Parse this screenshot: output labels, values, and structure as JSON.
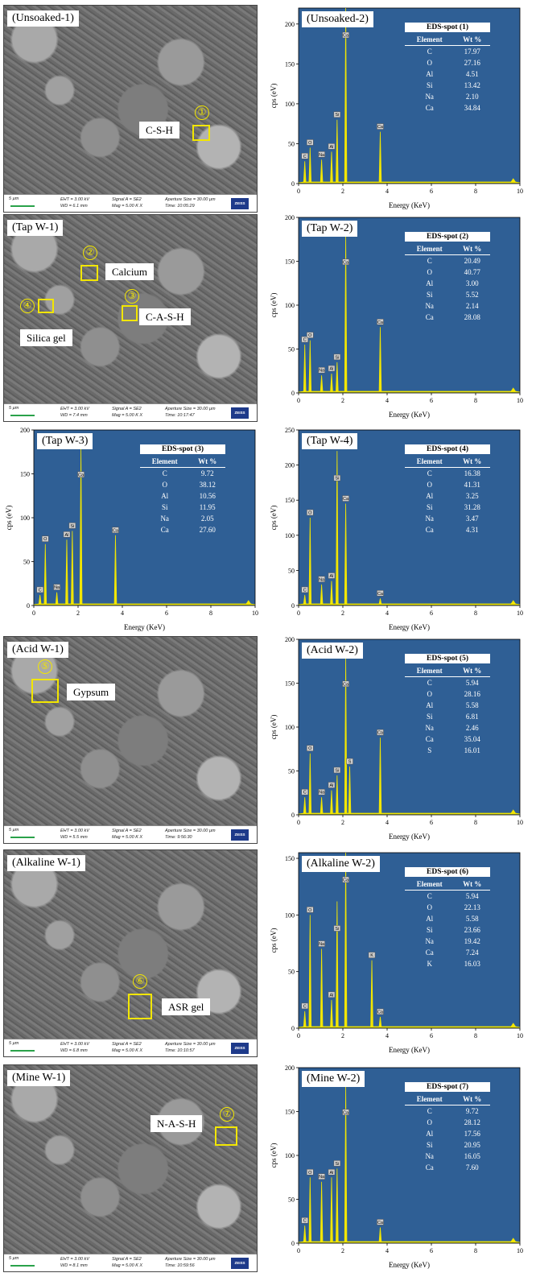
{
  "figure": {
    "sem_info": {
      "scale": "5 µm",
      "signal": "Signal A = SE2",
      "aperture": "Aperture Size = 30.00 µm",
      "eht": "EHT = 3.00 kV",
      "mag": "Mag = 5.00 K X",
      "zeiss": "ZEISS"
    },
    "axis": {
      "xlabel": "Energy (KeV)",
      "ylabel": "cps (eV)",
      "xticks": [
        "0",
        "2",
        "4",
        "6",
        "8",
        "10"
      ]
    },
    "table_cols": {
      "element": "Element",
      "wt": "Wt %"
    },
    "rows": [
      {
        "left": {
          "kind": "sem",
          "tag": "(Unsoaked-1)",
          "wd": "WD = 6.1 mm",
          "time": "Time: 10:05:29",
          "annotations": [
            {
              "text": "C-S-H"
            }
          ],
          "markers": [
            {
              "num": "①"
            }
          ]
        },
        "right": {
          "kind": "eds",
          "tag": "(Unsoaked-2)",
          "table_title": "EDS-spot (1)",
          "elements": [
            [
              "C",
              "17.97"
            ],
            [
              "O",
              "27.16"
            ],
            [
              "Al",
              "4.51"
            ],
            [
              "Si",
              "13.42"
            ],
            [
              "Na",
              "2.10"
            ],
            [
              "Ca",
              "34.84"
            ]
          ],
          "yticks": [
            "0",
            "50",
            "100",
            "150",
            "200"
          ],
          "ymax": 220,
          "peak_labels": [
            "C",
            "O",
            "Na",
            "Al",
            "Si",
            "Ca"
          ]
        }
      },
      {
        "left": {
          "kind": "sem",
          "tag": "(Tap W-1)",
          "wd": "WD = 7.4 mm",
          "time": "Time: 10:17:47",
          "annotations": [
            {
              "text": "Calcium"
            },
            {
              "text": "C-A-S-H"
            },
            {
              "text": "Silica gel"
            }
          ],
          "markers": [
            {
              "num": "②"
            },
            {
              "num": "③"
            },
            {
              "num": "④"
            }
          ]
        },
        "right": {
          "kind": "eds",
          "tag": "(Tap W-2)",
          "table_title": "EDS-spot (2)",
          "elements": [
            [
              "C",
              "20.49"
            ],
            [
              "O",
              "40.77"
            ],
            [
              "Al",
              "3.00"
            ],
            [
              "Si",
              "5.52"
            ],
            [
              "Na",
              "2.14"
            ],
            [
              "Ca",
              "28.08"
            ]
          ],
          "yticks": [
            "0",
            "50",
            "100",
            "150",
            "200"
          ],
          "ymax": 200,
          "peak_labels": [
            "C",
            "O",
            "Na",
            "Al",
            "Si",
            "Ca"
          ]
        }
      },
      {
        "left": {
          "kind": "eds",
          "tag": "(Tap W-3)",
          "table_title": "EDS-spot (3)",
          "elements": [
            [
              "C",
              "9.72"
            ],
            [
              "O",
              "38.12"
            ],
            [
              "Al",
              "10.56"
            ],
            [
              "Si",
              "11.95"
            ],
            [
              "Na",
              "2.05"
            ],
            [
              "Ca",
              "27.60"
            ]
          ],
          "yticks": [
            "0",
            "50",
            "100",
            "150",
            "200"
          ],
          "ymax": 200,
          "peak_labels": [
            "C",
            "O",
            "Na",
            "Al",
            "Si",
            "Ca"
          ]
        },
        "right": {
          "kind": "eds",
          "tag": "(Tap W-4)",
          "table_title": "EDS-spot (4)",
          "elements": [
            [
              "C",
              "16.38"
            ],
            [
              "O",
              "41.31"
            ],
            [
              "Al",
              "3.25"
            ],
            [
              "Si",
              "31.28"
            ],
            [
              "Na",
              "3.47"
            ],
            [
              "Ca",
              "4.31"
            ]
          ],
          "yticks": [
            "0",
            "50",
            "100",
            "150",
            "200",
            "250"
          ],
          "ymax": 250,
          "peak_labels": [
            "C",
            "O",
            "Na",
            "Al",
            "Ca"
          ]
        }
      },
      {
        "left": {
          "kind": "sem",
          "tag": "(Acid W-1)",
          "wd": "WD = 5.5 mm",
          "time": "Time: 9:56:30",
          "annotations": [
            {
              "text": "Gypsum"
            }
          ],
          "markers": [
            {
              "num": "⑤"
            }
          ]
        },
        "right": {
          "kind": "eds",
          "tag": "(Acid W-2)",
          "table_title": "EDS-spot (5)",
          "elements": [
            [
              "C",
              "5.94"
            ],
            [
              "O",
              "28.16"
            ],
            [
              "Al",
              "5.58"
            ],
            [
              "Si",
              "6.81"
            ],
            [
              "Na",
              "2.46"
            ],
            [
              "Ca",
              "35.04"
            ],
            [
              "S",
              "16.01"
            ]
          ],
          "yticks": [
            "0",
            "50",
            "100",
            "150",
            "200"
          ],
          "ymax": 200,
          "peak_labels": [
            "C",
            "O",
            "Na",
            "Al",
            "Si",
            "S",
            "Ca"
          ]
        }
      },
      {
        "left": {
          "kind": "sem",
          "tag": "(Alkaline W-1)",
          "wd": "WD = 6.8 mm",
          "time": "Time: 10:10:57",
          "annotations": [
            {
              "text": "ASR gel"
            }
          ],
          "markers": [
            {
              "num": "⑥"
            }
          ]
        },
        "right": {
          "kind": "eds",
          "tag": "(Alkaline W-2)",
          "table_title": "EDS-spot (6)",
          "elements": [
            [
              "C",
              "5.94"
            ],
            [
              "O",
              "22.13"
            ],
            [
              "Al",
              "5.58"
            ],
            [
              "Si",
              "23.66"
            ],
            [
              "Na",
              "19.42"
            ],
            [
              "Ca",
              "7.24"
            ],
            [
              "K",
              "16.03"
            ]
          ],
          "yticks": [
            "0",
            "50",
            "100",
            "150"
          ],
          "ymax": 155,
          "peak_labels": [
            "C",
            "O",
            "Na",
            "Al",
            "Si",
            "K",
            "Ca"
          ]
        }
      },
      {
        "left": {
          "kind": "sem",
          "tag": "(Mine W-1)",
          "wd": "WD = 8.1 mm",
          "time": "Time: 10:59:56",
          "annotations": [
            {
              "text": "N-A-S-H"
            }
          ],
          "markers": [
            {
              "num": "⑦"
            }
          ]
        },
        "right": {
          "kind": "eds",
          "tag": "(Mine W-2)",
          "table_title": "EDS-spot (7)",
          "elements": [
            [
              "C",
              "9.72"
            ],
            [
              "O",
              "28.12"
            ],
            [
              "Al",
              "17.56"
            ],
            [
              "Si",
              "20.95"
            ],
            [
              "Na",
              "16.05"
            ],
            [
              "Ca",
              "7.60"
            ]
          ],
          "yticks": [
            "0",
            "50",
            "100",
            "150",
            "200"
          ],
          "ymax": 200,
          "peak_labels": [
            "C",
            "O",
            "Na",
            "Al",
            "Si",
            "Ca"
          ]
        }
      }
    ]
  },
  "chart_data": [
    {
      "type": "line",
      "title": "(Unsoaked-2)",
      "xlabel": "Energy (KeV)",
      "ylabel": "cps (eV)",
      "xlim": [
        0,
        10
      ],
      "ylim": [
        0,
        220
      ],
      "peaks": [
        {
          "label": "C",
          "x": 0.28,
          "y": 28
        },
        {
          "label": "O",
          "x": 0.52,
          "y": 45
        },
        {
          "label": "Na",
          "x": 1.04,
          "y": 30
        },
        {
          "label": "Al",
          "x": 1.49,
          "y": 40
        },
        {
          "label": "Si",
          "x": 1.74,
          "y": 80
        },
        {
          "label": "Ca",
          "x": 2.13,
          "y": 220
        },
        {
          "label": "Ca",
          "x": 3.69,
          "y": 65
        }
      ]
    },
    {
      "type": "line",
      "title": "(Tap W-2)",
      "xlabel": "Energy (KeV)",
      "ylabel": "cps (eV)",
      "xlim": [
        0,
        10
      ],
      "ylim": [
        0,
        200
      ],
      "peaks": [
        {
          "label": "C",
          "x": 0.28,
          "y": 55
        },
        {
          "label": "O",
          "x": 0.52,
          "y": 60
        },
        {
          "label": "Na",
          "x": 1.04,
          "y": 20
        },
        {
          "label": "Al",
          "x": 1.49,
          "y": 22
        },
        {
          "label": "Si",
          "x": 1.74,
          "y": 35
        },
        {
          "label": "Ca",
          "x": 2.13,
          "y": 180
        },
        {
          "label": "Ca",
          "x": 3.69,
          "y": 75
        }
      ]
    },
    {
      "type": "line",
      "title": "(Tap W-3)",
      "xlabel": "Energy (KeV)",
      "ylabel": "cps (eV)",
      "xlim": [
        0,
        10
      ],
      "ylim": [
        0,
        200
      ],
      "peaks": [
        {
          "label": "C",
          "x": 0.28,
          "y": 12
        },
        {
          "label": "O",
          "x": 0.52,
          "y": 70
        },
        {
          "label": "Na",
          "x": 1.04,
          "y": 15
        },
        {
          "label": "Al",
          "x": 1.49,
          "y": 75
        },
        {
          "label": "Si",
          "x": 1.74,
          "y": 85
        },
        {
          "label": "Ca",
          "x": 2.13,
          "y": 180
        },
        {
          "label": "Ca",
          "x": 3.69,
          "y": 80
        }
      ]
    },
    {
      "type": "line",
      "title": "(Tap W-4)",
      "xlabel": "Energy (KeV)",
      "ylabel": "cps (eV)",
      "xlim": [
        0,
        10
      ],
      "ylim": [
        0,
        250
      ],
      "peaks": [
        {
          "label": "C",
          "x": 0.28,
          "y": 15
        },
        {
          "label": "O",
          "x": 0.52,
          "y": 125
        },
        {
          "label": "Na",
          "x": 1.04,
          "y": 30
        },
        {
          "label": "Al",
          "x": 1.49,
          "y": 35
        },
        {
          "label": "Si",
          "x": 1.74,
          "y": 220
        },
        {
          "label": "Ca",
          "x": 2.13,
          "y": 145
        },
        {
          "label": "Ca",
          "x": 3.69,
          "y": 10
        }
      ]
    },
    {
      "type": "line",
      "title": "(Acid W-2)",
      "xlabel": "Energy (KeV)",
      "ylabel": "cps (eV)",
      "xlim": [
        0,
        10
      ],
      "ylim": [
        0,
        200
      ],
      "peaks": [
        {
          "label": "C",
          "x": 0.28,
          "y": 20
        },
        {
          "label": "O",
          "x": 0.52,
          "y": 70
        },
        {
          "label": "Na",
          "x": 1.04,
          "y": 20
        },
        {
          "label": "Al",
          "x": 1.49,
          "y": 28
        },
        {
          "label": "Si",
          "x": 1.74,
          "y": 45
        },
        {
          "label": "S",
          "x": 2.31,
          "y": 55
        },
        {
          "label": "Ca",
          "x": 2.13,
          "y": 180
        },
        {
          "label": "Ca",
          "x": 3.69,
          "y": 88
        }
      ]
    },
    {
      "type": "line",
      "title": "(Alkaline W-2)",
      "xlabel": "Energy (KeV)",
      "ylabel": "cps (eV)",
      "xlim": [
        0,
        10
      ],
      "ylim": [
        0,
        155
      ],
      "peaks": [
        {
          "label": "C",
          "x": 0.28,
          "y": 15
        },
        {
          "label": "O",
          "x": 0.52,
          "y": 100
        },
        {
          "label": "Na",
          "x": 1.04,
          "y": 70
        },
        {
          "label": "Al",
          "x": 1.49,
          "y": 25
        },
        {
          "label": "Si",
          "x": 1.74,
          "y": 112
        },
        {
          "label": "Ca",
          "x": 2.13,
          "y": 155
        },
        {
          "label": "K",
          "x": 3.31,
          "y": 60
        },
        {
          "label": "Ca",
          "x": 3.69,
          "y": 10
        }
      ]
    },
    {
      "type": "line",
      "title": "(Mine W-2)",
      "xlabel": "Energy (KeV)",
      "ylabel": "cps (eV)",
      "xlim": [
        0,
        10
      ],
      "ylim": [
        0,
        200
      ],
      "peaks": [
        {
          "label": "C",
          "x": 0.28,
          "y": 20
        },
        {
          "label": "O",
          "x": 0.52,
          "y": 75
        },
        {
          "label": "Na",
          "x": 1.04,
          "y": 70
        },
        {
          "label": "Al",
          "x": 1.49,
          "y": 75
        },
        {
          "label": "Si",
          "x": 1.74,
          "y": 85
        },
        {
          "label": "Ca",
          "x": 2.13,
          "y": 180
        },
        {
          "label": "Ca",
          "x": 3.69,
          "y": 18
        }
      ]
    }
  ]
}
